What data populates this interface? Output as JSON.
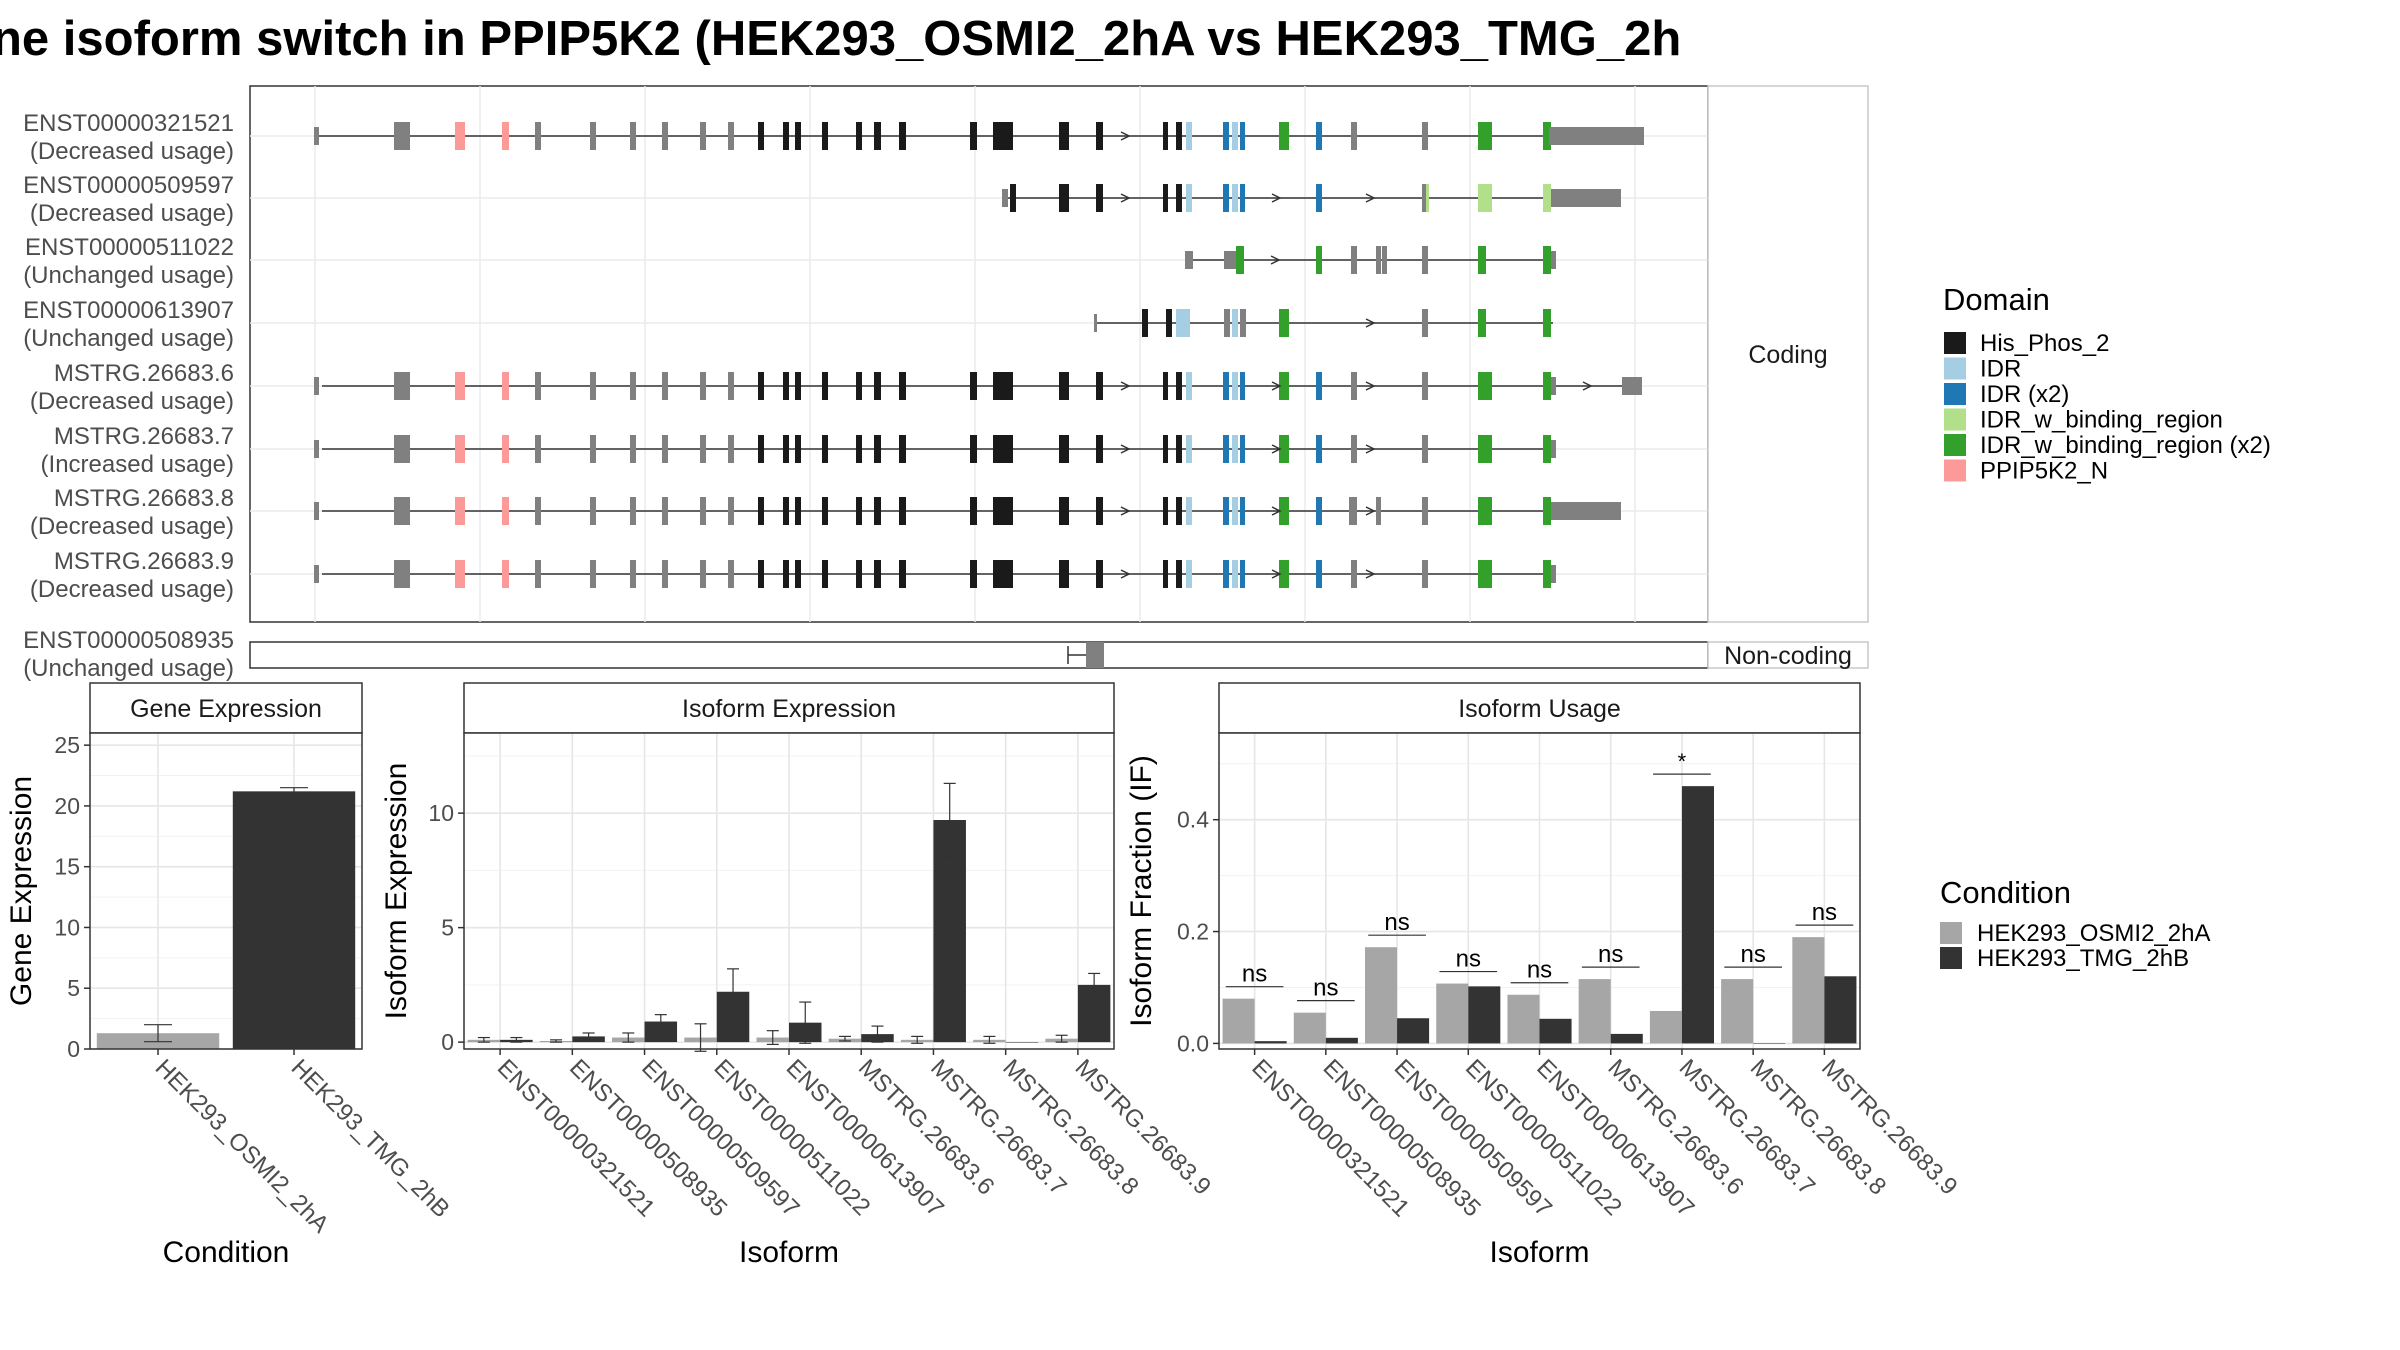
{
  "title": "ne isoform switch in PPIP5K2 (HEK293_OSMI2_2hA vs HEK293_TMG_2h",
  "colors": {
    "His_Phos_2": "#1a1a1a",
    "IDR": "#a6cee3",
    "IDR (x2)": "#1f78b4",
    "IDR_w_binding_region": "#b2df8a",
    "IDR_w_binding_region (x2)": "#33a02c",
    "PPIP5K2_N": "#fb9a99",
    "exon": "#808080",
    "cond1": "#a6a6a6",
    "cond2": "#333333"
  },
  "structure": {
    "facet_coding": "Coding",
    "facet_noncoding": "Non-coding",
    "coding": [
      {
        "id": "ENST00000321521",
        "usage": "(Decreased usage)"
      },
      {
        "id": "ENST00000509597",
        "usage": "(Decreased usage)"
      },
      {
        "id": "ENST00000511022",
        "usage": "(Unchanged usage)"
      },
      {
        "id": "ENST00000613907",
        "usage": "(Unchanged usage)"
      },
      {
        "id": "MSTRG.26683.6",
        "usage": "(Decreased usage)"
      },
      {
        "id": "MSTRG.26683.7",
        "usage": "(Increased usage)"
      },
      {
        "id": "MSTRG.26683.8",
        "usage": "(Decreased usage)"
      },
      {
        "id": "MSTRG.26683.9",
        "usage": "(Decreased usage)"
      }
    ],
    "noncoding": [
      {
        "id": "ENST00000508935",
        "usage": "(Unchanged usage)"
      }
    ]
  },
  "legend_domain": {
    "title": "Domain",
    "items": [
      "His_Phos_2",
      "IDR",
      "IDR (x2)",
      "IDR_w_binding_region",
      "IDR_w_binding_region (x2)",
      "PPIP5K2_N"
    ]
  },
  "legend_condition": {
    "title": "Condition",
    "items": [
      "HEK293_OSMI2_2hA",
      "HEK293_TMG_2hB"
    ]
  },
  "chart_data": [
    {
      "type": "bar",
      "title": "Gene Expression",
      "xlabel": "Condition",
      "ylabel": "Gene Expression",
      "categories": [
        "HEK293_OSMI2_2hA",
        "HEK293_TMG_2hB"
      ],
      "values": [
        1.3,
        21.2
      ],
      "errors": [
        0.7,
        0.3
      ],
      "ylim": [
        0,
        26
      ],
      "yticks": [
        0,
        5,
        10,
        15,
        20,
        25
      ]
    },
    {
      "type": "bar",
      "title": "Isoform Expression",
      "xlabel": "Isoform",
      "ylabel": "Isoform Expression",
      "categories": [
        "ENST00000321521",
        "ENST00000508935",
        "ENST00000509597",
        "ENST00000511022",
        "ENST00000613907",
        "MSTRG.26683.6",
        "MSTRG.26683.7",
        "MSTRG.26683.8",
        "MSTRG.26683.9"
      ],
      "series": [
        {
          "name": "HEK293_OSMI2_2hA",
          "values": [
            0.1,
            0.05,
            0.2,
            0.2,
            0.2,
            0.15,
            0.1,
            0.1,
            0.15
          ],
          "errors": [
            0.1,
            0.05,
            0.2,
            0.6,
            0.3,
            0.1,
            0.15,
            0.15,
            0.15
          ]
        },
        {
          "name": "HEK293_TMG_2hB",
          "values": [
            0.1,
            0.25,
            0.9,
            2.2,
            0.85,
            0.35,
            9.7,
            0.0,
            2.5
          ],
          "errors": [
            0.1,
            0.15,
            0.3,
            1.0,
            0.9,
            0.35,
            1.6,
            0.0,
            0.5
          ]
        }
      ],
      "ylim": [
        -0.3,
        13.5
      ],
      "yticks": [
        0,
        5,
        10
      ]
    },
    {
      "type": "bar",
      "title": "Isoform Usage",
      "xlabel": "Isoform",
      "ylabel": "Isoform Fraction (IF)",
      "categories": [
        "ENST00000321521",
        "ENST00000508935",
        "ENST00000509597",
        "ENST00000511022",
        "ENST00000613907",
        "MSTRG.26683.6",
        "MSTRG.26683.7",
        "MSTRG.26683.8",
        "MSTRG.26683.9"
      ],
      "series": [
        {
          "name": "HEK293_OSMI2_2hA",
          "values": [
            0.08,
            0.055,
            0.172,
            0.107,
            0.087,
            0.115,
            0.058,
            0.115,
            0.19
          ]
        },
        {
          "name": "HEK293_TMG_2hB",
          "values": [
            0.004,
            0.01,
            0.045,
            0.102,
            0.044,
            0.017,
            0.46,
            0.0,
            0.12
          ]
        }
      ],
      "significance": [
        "ns",
        "ns",
        "ns",
        "ns",
        "ns",
        "ns",
        "*",
        "ns",
        "ns"
      ],
      "ylim": [
        -0.01,
        0.555
      ],
      "yticks": [
        0.0,
        0.2,
        0.4
      ]
    }
  ]
}
